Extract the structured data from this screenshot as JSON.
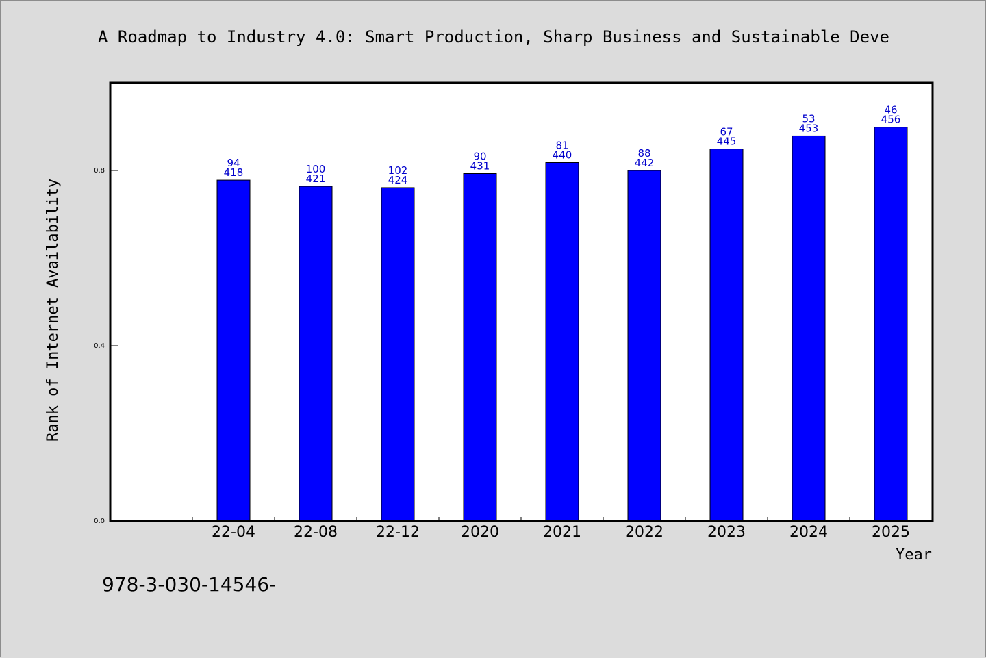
{
  "chart_data": {
    "type": "bar",
    "title": "A Roadmap to Industry 4.0: Smart Production, Sharp Business and Sustainable Deve",
    "xlabel": "Year",
    "ylabel": "Rank of Internet Availability",
    "ylim": [
      0.0,
      1.0
    ],
    "yticks": [
      "0.0",
      "0.4",
      "0.8"
    ],
    "ytick_values": [
      0.0,
      0.4,
      0.8
    ],
    "grid": false,
    "categories": [
      "22-04",
      "22-08",
      "22-12",
      "2020",
      "2021",
      "2022",
      "2023",
      "2024",
      "2025"
    ],
    "values": [
      0.778,
      0.764,
      0.761,
      0.793,
      0.818,
      0.8,
      0.849,
      0.879,
      0.899
    ],
    "label_top": [
      "94",
      "100",
      "102",
      "90",
      "81",
      "88",
      "67",
      "53",
      "46"
    ],
    "label_bottom": [
      "418",
      "421",
      "424",
      "431",
      "440",
      "442",
      "445",
      "453",
      "456"
    ],
    "bar_color": "#0000ff",
    "label_color": "#0000cc"
  },
  "footer": {
    "text": "978-3-030-14546-"
  }
}
